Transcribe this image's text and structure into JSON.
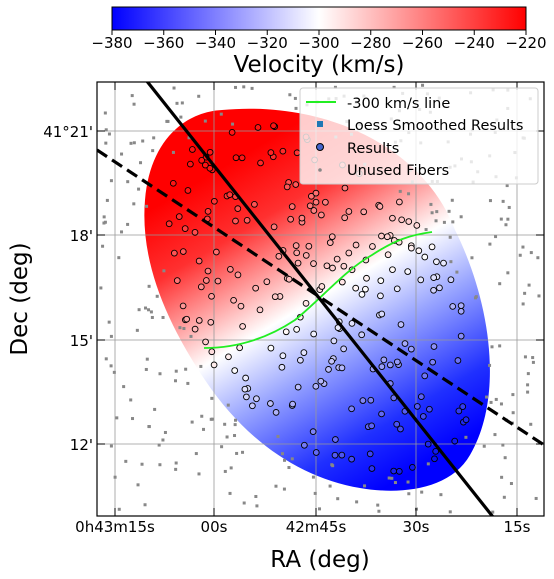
{
  "chart_data": {
    "type": "scatter",
    "title": "",
    "xlabel": "RA (deg)",
    "ylabel": "Dec (deg)",
    "x_ticks": [
      "0h43m15s",
      "00s",
      "42m45s",
      "30s",
      "15s"
    ],
    "y_ticks": [
      "41°21'",
      "18'",
      "15'",
      "12'"
    ],
    "grid": true,
    "legend_position": "top-right",
    "legend": [
      {
        "label": "-300 km/s line",
        "marker": "line",
        "color": "#22ee22"
      },
      {
        "label": "Loess Smoothed Results",
        "marker": "square",
        "color": "#1f77b4"
      },
      {
        "label": "Results",
        "marker": "circle",
        "color": "#4466cc"
      },
      {
        "label": "Unused Fibers",
        "marker": "dot",
        "color": "#888888"
      }
    ],
    "colorbar": {
      "label": "Velocity (km/s)",
      "range": [
        -380,
        -220
      ],
      "ticks": [
        "−380",
        "−360",
        "−340",
        "−320",
        "−300",
        "−280",
        "−260",
        "−240",
        "−220"
      ],
      "colormap": "bwr",
      "position": "top"
    },
    "colors": {
      "low": "#0000ff",
      "mid": "#ffffff",
      "high": "#ff0000",
      "contour": "#22ee22",
      "unused": "#888888"
    }
  }
}
